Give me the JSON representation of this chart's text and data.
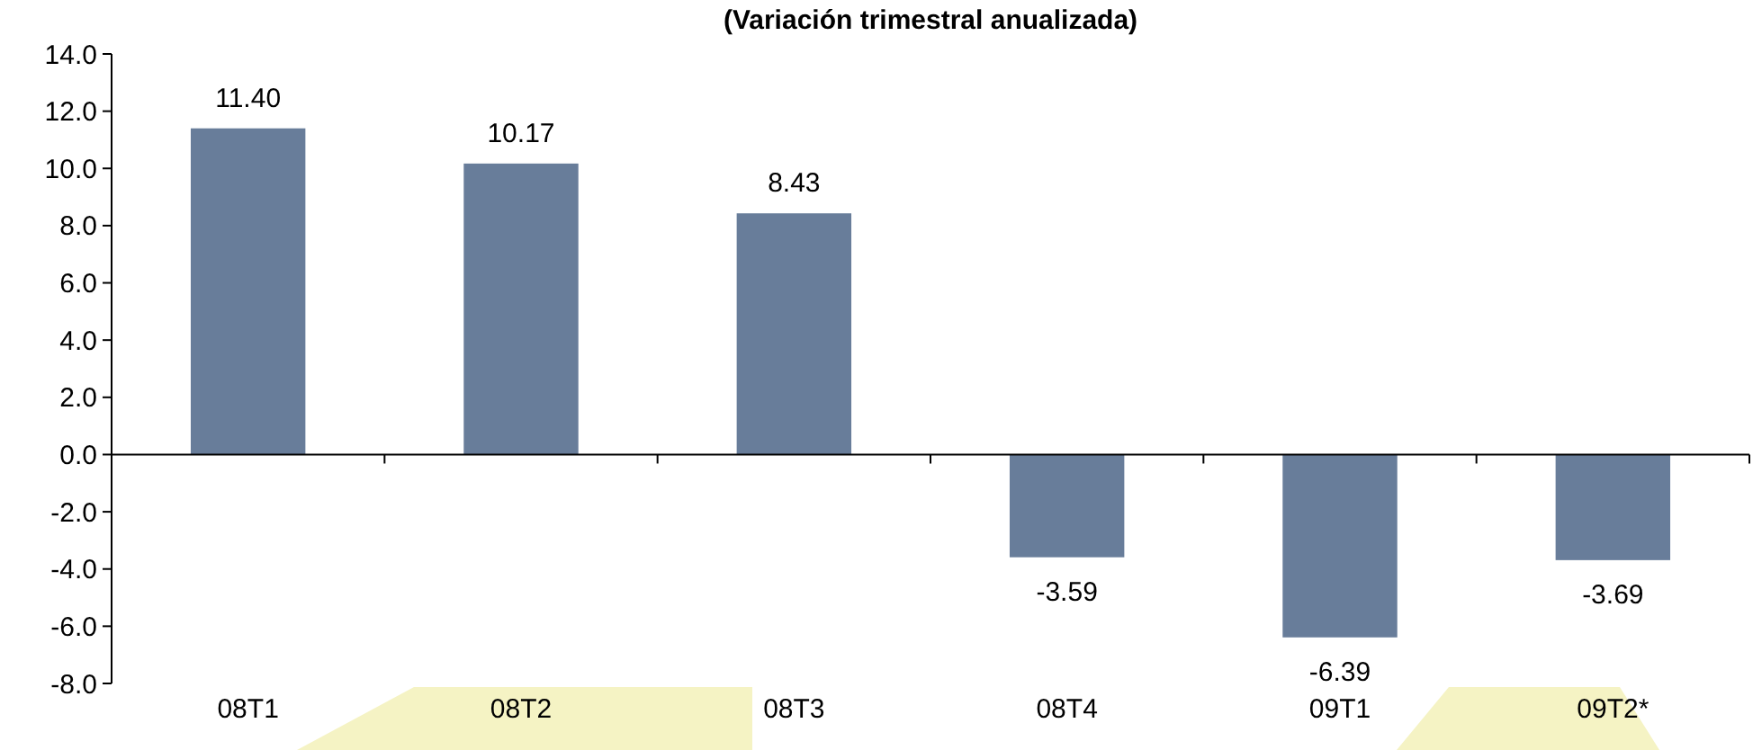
{
  "chart_data": {
    "type": "bar",
    "subtitle": "(Variación trimestral anualizada)",
    "categories": [
      "08T1",
      "08T2",
      "08T3",
      "08T4",
      "09T1",
      "09T2*"
    ],
    "values": [
      11.4,
      10.17,
      8.43,
      -3.59,
      -6.39,
      -3.69
    ],
    "value_labels": [
      "11.40",
      "10.17",
      "8.43",
      "-3.59",
      "-6.39",
      "-3.69"
    ],
    "color": "#687d9a",
    "ylim": [
      -8,
      14
    ],
    "yticks": [
      {
        "value": -8,
        "label": "-8.0"
      },
      {
        "value": -6,
        "label": "-6.0"
      },
      {
        "value": -4,
        "label": "-4.0"
      },
      {
        "value": -2,
        "label": "-2.0"
      },
      {
        "value": 0,
        "label": "0.0"
      },
      {
        "value": 2,
        "label": "2.0"
      },
      {
        "value": 4,
        "label": "4.0"
      },
      {
        "value": 6,
        "label": "6.0"
      },
      {
        "value": 8,
        "label": "8.0"
      },
      {
        "value": 10,
        "label": "10.0"
      },
      {
        "value": 12,
        "label": "12.0"
      },
      {
        "value": 14,
        "label": "14.0"
      }
    ]
  }
}
